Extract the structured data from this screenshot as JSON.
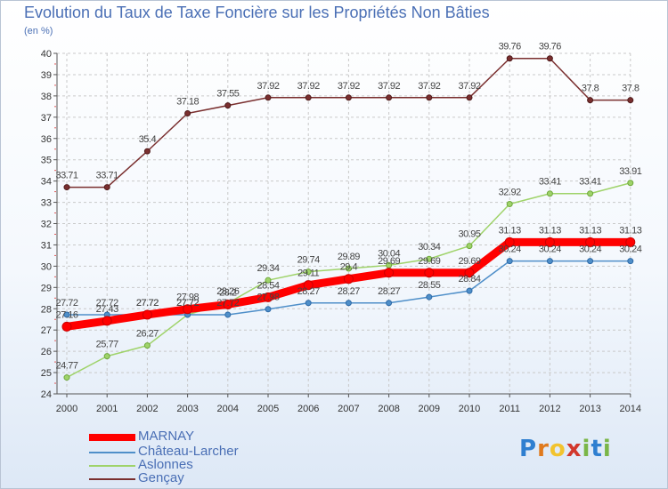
{
  "title": "Evolution du Taux de Taxe Foncière sur les Propriétés Non Bâties",
  "subtitle": "(en %)",
  "logo_letters": [
    "P",
    "r",
    "o",
    "x",
    "i",
    "t",
    "i"
  ],
  "logo_colors": [
    "#2f7fd0",
    "#e07a1e",
    "#f2c32e",
    "#d2372c",
    "#7ab648",
    "#2f7fd0",
    "#7ab648"
  ],
  "chart_data": {
    "type": "line",
    "title": "Evolution du Taux de Taxe Foncière sur les Propriétés Non Bâties",
    "ylabel": "(en %)",
    "xlabel": "",
    "x": [
      "2000",
      "2001",
      "2002",
      "2003",
      "2004",
      "2005",
      "2006",
      "2007",
      "2008",
      "2009",
      "2010",
      "2011",
      "2012",
      "2013",
      "2014"
    ],
    "ylim": [
      24,
      40
    ],
    "yticks": [
      "24",
      "25",
      "26",
      "27",
      "28",
      "29",
      "30",
      "31",
      "32",
      "33",
      "34",
      "35",
      "36",
      "37",
      "38",
      "39",
      "40"
    ],
    "grid": true,
    "legend_position": "bottom-left",
    "series": [
      {
        "name": "MARNAY",
        "color": "#ff0000",
        "values": [
          27.16,
          27.43,
          27.72,
          27.98,
          28.2,
          28.54,
          29.11,
          29.4,
          29.69,
          29.69,
          29.69,
          31.13,
          31.13,
          31.13,
          31.13
        ],
        "labels": [
          "27.16",
          "27.43",
          "27.72",
          "27.98",
          "28.2",
          "28.54",
          "29.11",
          "29.4",
          "29.69",
          "29.69",
          "29.69",
          "31.13",
          "31.13",
          "31.13",
          "31.13"
        ]
      },
      {
        "name": "Château-Larcher",
        "color": "#4f8fc9",
        "values": [
          27.72,
          27.72,
          27.72,
          27.72,
          27.72,
          27.98,
          28.27,
          28.27,
          28.27,
          28.55,
          28.84,
          30.24,
          30.24,
          30.24,
          30.24
        ],
        "labels": [
          "27.72",
          "27.72",
          "27.72",
          "27.72",
          "27.72",
          "27.98",
          "28.27",
          "28.27",
          "28.27",
          "28.55",
          "28.84",
          "30.24",
          "30.24",
          "30.24",
          "30.24"
        ]
      },
      {
        "name": "Aslonnes",
        "color": "#9fd36a",
        "values": [
          24.77,
          25.77,
          26.27,
          27.72,
          28.26,
          29.34,
          29.74,
          29.89,
          30.04,
          30.34,
          30.95,
          32.92,
          33.41,
          33.41,
          33.91
        ],
        "labels": [
          "24.77",
          "25.77",
          "26.27",
          "27.72",
          "28.26",
          "29.34",
          "29.74",
          "29.89",
          "30.04",
          "30.34",
          "30.95",
          "32.92",
          "33.41",
          "33.41",
          "33.91"
        ]
      },
      {
        "name": "Gençay",
        "color": "#7a2f2f",
        "values": [
          33.71,
          33.71,
          35.4,
          37.18,
          37.55,
          37.92,
          37.92,
          37.92,
          37.92,
          37.92,
          37.92,
          39.76,
          39.76,
          37.8,
          37.8
        ],
        "labels": [
          "33.71",
          "33.71",
          "35.4",
          "37.18",
          "37.55",
          "37.92",
          "37.92",
          "37.92",
          "37.92",
          "37.92",
          "37.92",
          "39.76",
          "39.76",
          "37.8",
          "37.8"
        ]
      }
    ]
  }
}
